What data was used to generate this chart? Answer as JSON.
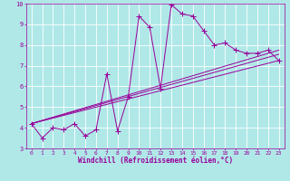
{
  "xlabel": "Windchill (Refroidissement éolien,°C)",
  "bg_color": "#b0e8e8",
  "grid_color": "#ffffff",
  "line_color": "#990099",
  "xlim": [
    -0.5,
    23.5
  ],
  "ylim": [
    3,
    10
  ],
  "xticks": [
    0,
    1,
    2,
    3,
    4,
    5,
    6,
    7,
    8,
    9,
    10,
    11,
    12,
    13,
    14,
    15,
    16,
    17,
    18,
    19,
    20,
    21,
    22,
    23
  ],
  "yticks": [
    3,
    4,
    5,
    6,
    7,
    8,
    9,
    10
  ],
  "main_series": {
    "x": [
      0,
      1,
      2,
      3,
      4,
      5,
      6,
      7,
      8,
      9,
      10,
      11,
      12,
      13,
      14,
      15,
      16,
      17,
      18,
      19,
      20,
      21,
      22,
      23
    ],
    "y": [
      4.2,
      3.5,
      4.0,
      3.9,
      4.2,
      3.6,
      3.9,
      6.6,
      3.85,
      5.5,
      9.4,
      8.85,
      5.9,
      9.95,
      9.5,
      9.4,
      8.7,
      8.0,
      8.1,
      7.75,
      7.6,
      7.6,
      7.75,
      7.25
    ]
  },
  "trend_lines": [
    {
      "x": [
        0,
        23
      ],
      "y": [
        4.2,
        7.25
      ]
    },
    {
      "x": [
        0,
        23
      ],
      "y": [
        4.2,
        7.55
      ]
    },
    {
      "x": [
        0,
        23
      ],
      "y": [
        4.2,
        7.75
      ]
    }
  ],
  "marker": "+",
  "markersize": 4,
  "linewidth": 0.7
}
